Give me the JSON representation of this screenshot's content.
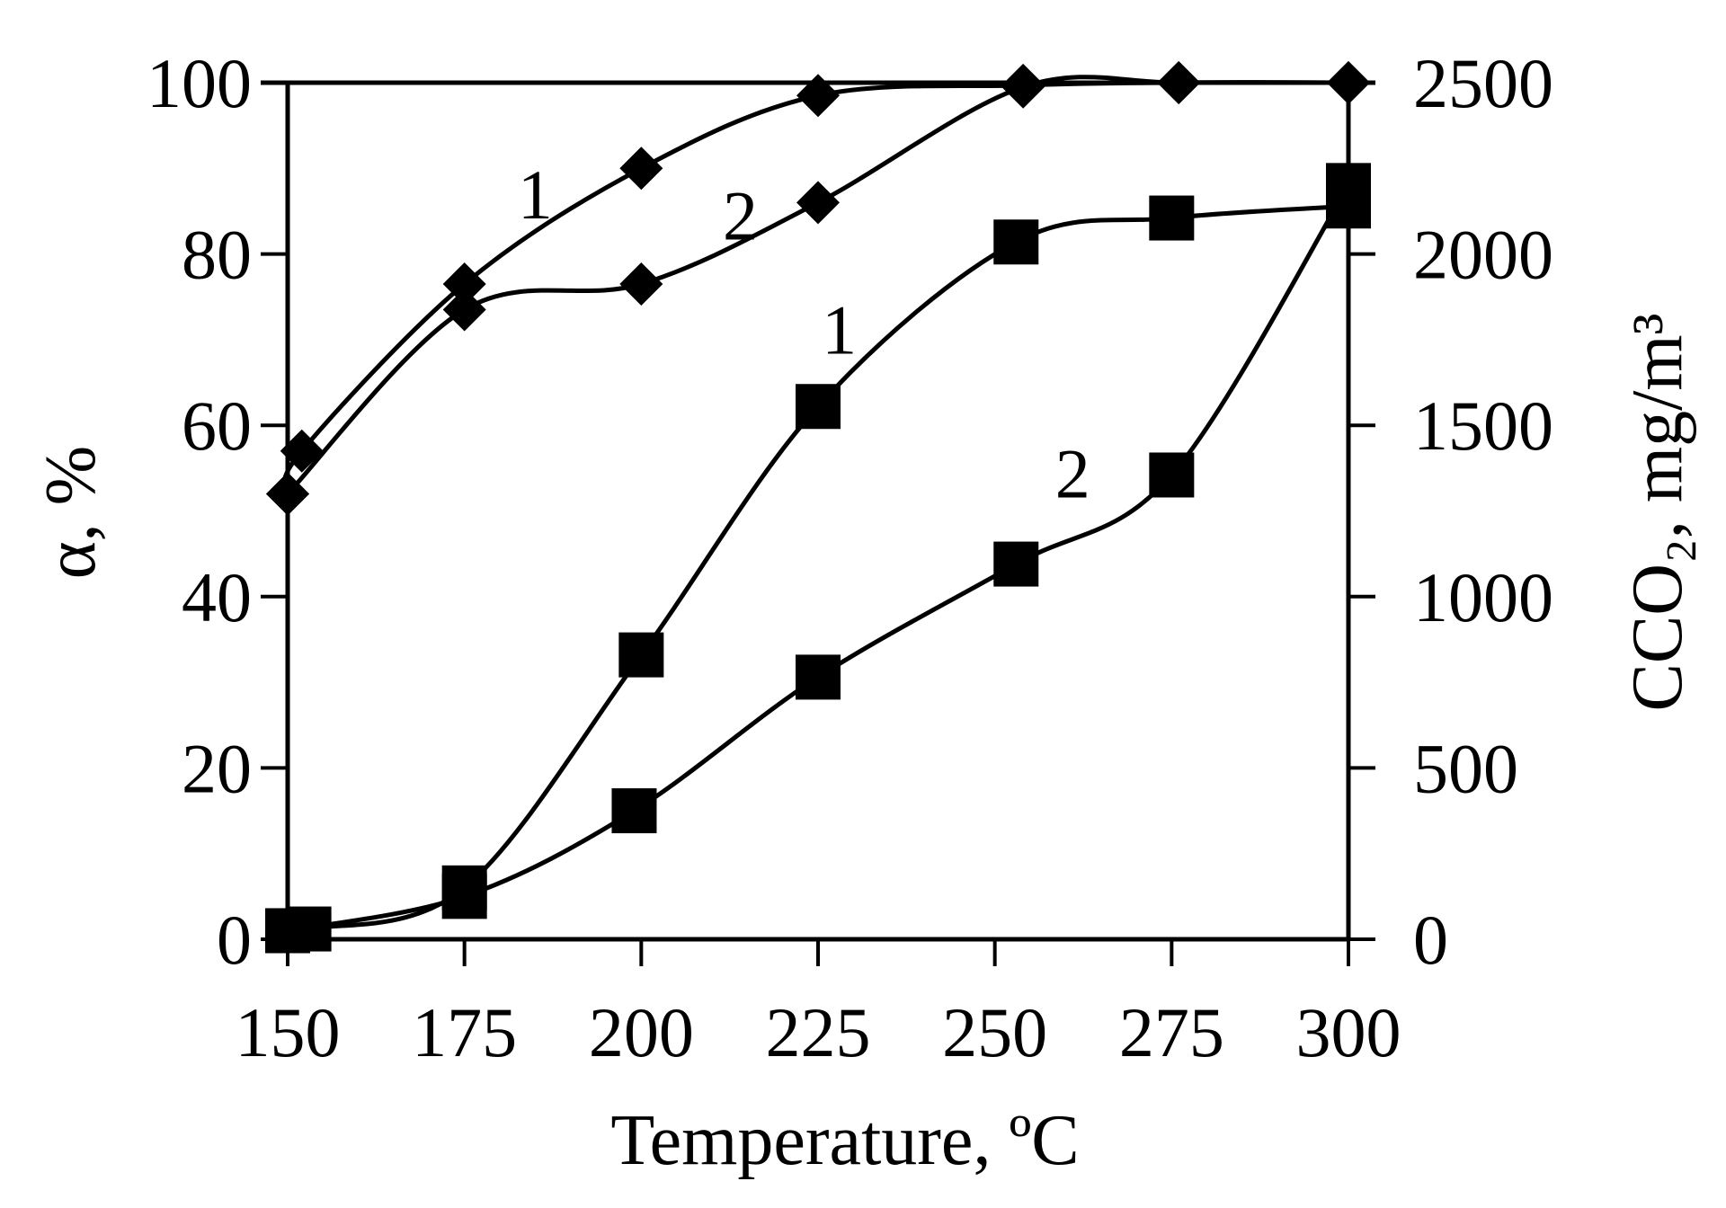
{
  "chart_data": {
    "type": "line",
    "xlabel": "Temperature, ºC",
    "ylabel_left": "α, %",
    "ylabel_right": "CCO₂, mg/m³",
    "xlim": [
      150,
      300
    ],
    "ylim_left": [
      0,
      100
    ],
    "ylim_right": [
      0,
      2500
    ],
    "x_ticks": [
      150,
      175,
      200,
      225,
      250,
      275,
      300
    ],
    "y_ticks_left": [
      0,
      20,
      40,
      60,
      80,
      100
    ],
    "y_ticks_right": [
      0,
      500,
      1000,
      1500,
      2000,
      2500
    ],
    "grid": false,
    "series": [
      {
        "label": "1",
        "axis": "left",
        "marker": "diamond",
        "x": [
          150,
          152,
          175,
          200,
          225,
          254,
          276,
          300
        ],
        "y": [
          52,
          57,
          76.5,
          90,
          98.5,
          99.7,
          100,
          100
        ],
        "label_position": {
          "x": 185,
          "y": 87
        }
      },
      {
        "label": "2",
        "axis": "left",
        "marker": "diamond",
        "x": [
          150,
          175,
          200,
          225,
          254,
          276,
          300
        ],
        "y": [
          52,
          73.5,
          76.5,
          86,
          99.5,
          100,
          100
        ],
        "label_position": {
          "x": 214,
          "y": 84.5
        }
      },
      {
        "label": "1",
        "axis": "right",
        "marker": "square",
        "x": [
          150,
          153,
          175,
          200,
          225,
          253,
          275,
          300
        ],
        "y": [
          25,
          30,
          150,
          830,
          1555,
          2035,
          2105,
          2140
        ],
        "label_position": {
          "x": 228,
          "y": 1780
        }
      },
      {
        "label": "2",
        "axis": "right",
        "marker": "square",
        "x": [
          150,
          175,
          199,
          225,
          253,
          275,
          300
        ],
        "y": [
          25,
          125,
          375,
          765,
          1095,
          1355,
          2200
        ],
        "label_position": {
          "x": 261,
          "y": 1360
        }
      }
    ]
  }
}
